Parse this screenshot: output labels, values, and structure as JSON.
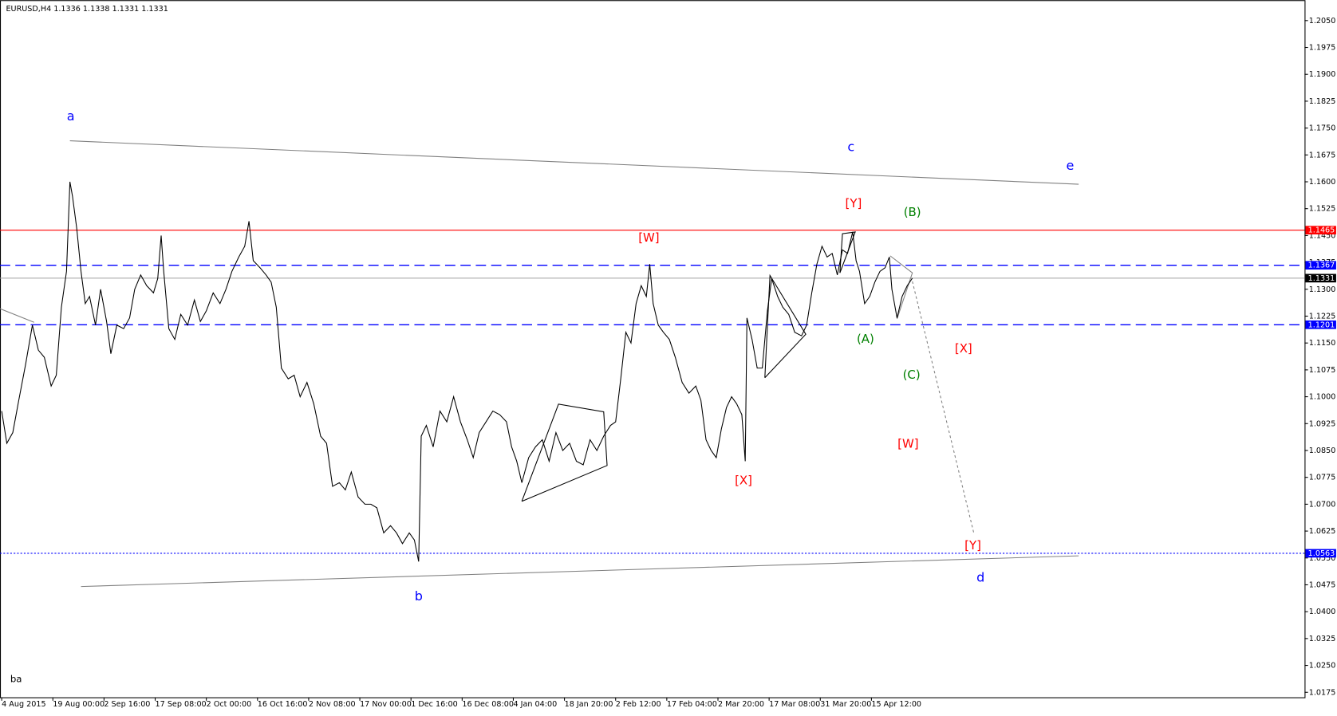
{
  "chart_data": {
    "type": "line",
    "title": "EURUSD,H4  1.1336 1.1338 1.1331 1.1331",
    "footer": "ba",
    "color": "#000000",
    "xlim": [
      0,
      1530
    ],
    "ylim": [
      1.0161,
      1.2107
    ],
    "xticks": [
      {
        "value": 2,
        "label": "4 Aug 2015"
      },
      {
        "value": 62,
        "label": "19 Aug 00:00"
      },
      {
        "value": 122,
        "label": "2 Sep 16:00"
      },
      {
        "value": 182,
        "label": "17 Sep 08:00"
      },
      {
        "value": 242,
        "label": "2 Oct 00:00"
      },
      {
        "value": 302,
        "label": "16 Oct 16:00"
      },
      {
        "value": 362,
        "label": "2 Nov 08:00"
      },
      {
        "value": 422,
        "label": "17 Nov 00:00"
      },
      {
        "value": 482,
        "label": "1 Dec 16:00"
      },
      {
        "value": 542,
        "label": "16 Dec 08:00"
      },
      {
        "value": 602,
        "label": "4 Jan 04:00"
      },
      {
        "value": 662,
        "label": "18 Jan 20:00"
      },
      {
        "value": 722,
        "label": "2 Feb 12:00"
      },
      {
        "value": 782,
        "label": "17 Feb 04:00"
      },
      {
        "value": 842,
        "label": "2 Mar 20:00"
      },
      {
        "value": 902,
        "label": "17 Mar 08:00"
      },
      {
        "value": 962,
        "label": "31 Mar 20:00"
      },
      {
        "value": 1022,
        "label": "15 Apr 12:00"
      }
    ],
    "yticks": [
      {
        "value": 1.0175,
        "label": "1.0175"
      },
      {
        "value": 1.025,
        "label": "1.0250"
      },
      {
        "value": 1.0325,
        "label": "1.0325"
      },
      {
        "value": 1.04,
        "label": "1.0400"
      },
      {
        "value": 1.0475,
        "label": "1.0475"
      },
      {
        "value": 1.055,
        "label": "1.0550"
      },
      {
        "value": 1.0625,
        "label": "1.0625"
      },
      {
        "value": 1.07,
        "label": "1.0700"
      },
      {
        "value": 1.0775,
        "label": "1.0775"
      },
      {
        "value": 1.085,
        "label": "1.0850"
      },
      {
        "value": 1.0925,
        "label": "1.0925"
      },
      {
        "value": 1.1,
        "label": "1.1000"
      },
      {
        "value": 1.1075,
        "label": "1.1075"
      },
      {
        "value": 1.115,
        "label": "1.1150"
      },
      {
        "value": 1.1225,
        "label": "1.1225"
      },
      {
        "value": 1.13,
        "label": "1.1300"
      },
      {
        "value": 1.1375,
        "label": "1.1375"
      },
      {
        "value": 1.145,
        "label": "1.1450"
      },
      {
        "value": 1.1525,
        "label": "1.1525"
      },
      {
        "value": 1.16,
        "label": "1.1600"
      },
      {
        "value": 1.1675,
        "label": "1.1675"
      },
      {
        "value": 1.175,
        "label": "1.1750"
      },
      {
        "value": 1.1825,
        "label": "1.1825"
      },
      {
        "value": 1.19,
        "label": "1.1900"
      },
      {
        "value": 1.1975,
        "label": "1.1975"
      },
      {
        "value": 1.205,
        "label": "1.2050"
      }
    ],
    "levels": [
      {
        "value": 1.1465,
        "color": "#ff0000",
        "style": "solid"
      },
      {
        "value": 1.1367,
        "color": "#0000ff",
        "style": "dashed"
      },
      {
        "value": 1.1331,
        "color": "#000000",
        "style": "solid"
      },
      {
        "value": 1.1201,
        "color": "#0000ff",
        "style": "dashed"
      },
      {
        "value": 1.0563,
        "color": "#0000ff",
        "style": "dotted"
      }
    ],
    "annotations": [
      "a",
      "b",
      "c",
      "d",
      "e",
      "[W]",
      "[Y]",
      "(B)",
      "(A)",
      "[X]",
      "(C)",
      "[W]",
      "[X]",
      "[Y]"
    ],
    "x": [
      2,
      8,
      15,
      22,
      30,
      38,
      45,
      52,
      60,
      66,
      72,
      78,
      82,
      85,
      90,
      95,
      100,
      105,
      112,
      118,
      125,
      130,
      137,
      145,
      152,
      158,
      165,
      172,
      180,
      185,
      189,
      192,
      198,
      205,
      212,
      220,
      228,
      235,
      242,
      250,
      258,
      265,
      272,
      280,
      287,
      292,
      297,
      305,
      312,
      318,
      324,
      330,
      338,
      345,
      352,
      360,
      368,
      376,
      383,
      390,
      398,
      405,
      412,
      420,
      428,
      435,
      442,
      450,
      458,
      465,
      472,
      480,
      486,
      491,
      494,
      500,
      508,
      516,
      524,
      532,
      540,
      548,
      555,
      562,
      570,
      578,
      586,
      594,
      600,
      606,
      612,
      620,
      628,
      636,
      644,
      652,
      660,
      668,
      676,
      684,
      692,
      700,
      708,
      716,
      722,
      728,
      734,
      740,
      746,
      752,
      758,
      762,
      766,
      772,
      778,
      785,
      792,
      800,
      808,
      816,
      822,
      828,
      834,
      840,
      846,
      852,
      858,
      864,
      870,
      874,
      876,
      882,
      888,
      894,
      900,
      905,
      912,
      918,
      925,
      932,
      940,
      946,
      952,
      958,
      964,
      970,
      976,
      982,
      988,
      994,
      1000,
      1004,
      1008,
      1014,
      1020,
      1026,
      1032,
      1038,
      1043,
      1046,
      1052,
      1058,
      1064,
      1070
    ],
    "values": [
      1.096,
      1.087,
      1.09,
      1.099,
      1.109,
      1.12,
      1.113,
      1.111,
      1.103,
      1.106,
      1.125,
      1.135,
      1.16,
      1.156,
      1.147,
      1.135,
      1.126,
      1.128,
      1.12,
      1.13,
      1.121,
      1.112,
      1.12,
      1.119,
      1.122,
      1.13,
      1.134,
      1.131,
      1.129,
      1.133,
      1.145,
      1.135,
      1.119,
      1.116,
      1.123,
      1.12,
      1.127,
      1.121,
      1.124,
      1.129,
      1.126,
      1.13,
      1.135,
      1.139,
      1.142,
      1.149,
      1.138,
      1.136,
      1.134,
      1.132,
      1.125,
      1.108,
      1.105,
      1.106,
      1.1,
      1.104,
      1.098,
      1.089,
      1.087,
      1.075,
      1.076,
      1.074,
      1.079,
      1.072,
      1.07,
      1.07,
      1.069,
      1.062,
      1.064,
      1.062,
      1.059,
      1.062,
      1.06,
      1.054,
      1.089,
      1.092,
      1.086,
      1.096,
      1.093,
      1.1,
      1.093,
      1.088,
      1.083,
      1.09,
      1.093,
      1.096,
      1.095,
      1.093,
      1.086,
      1.082,
      1.076,
      1.083,
      1.086,
      1.088,
      1.082,
      1.09,
      1.085,
      1.087,
      1.082,
      1.081,
      1.088,
      1.085,
      1.089,
      1.092,
      1.093,
      1.105,
      1.118,
      1.115,
      1.126,
      1.131,
      1.128,
      1.137,
      1.126,
      1.12,
      1.118,
      1.116,
      1.111,
      1.104,
      1.101,
      1.103,
      1.099,
      1.088,
      1.085,
      1.083,
      1.091,
      1.097,
      1.1,
      1.098,
      1.095,
      1.082,
      1.122,
      1.116,
      1.108,
      1.108,
      1.124,
      1.133,
      1.128,
      1.125,
      1.123,
      1.118,
      1.117,
      1.12,
      1.129,
      1.137,
      1.142,
      1.139,
      1.14,
      1.134,
      1.141,
      1.14,
      1.146,
      1.138,
      1.135,
      1.126,
      1.128,
      1.132,
      1.135,
      1.136,
      1.139,
      1.13,
      1.122,
      1.128,
      1.131,
      1.1331
    ]
  }
}
